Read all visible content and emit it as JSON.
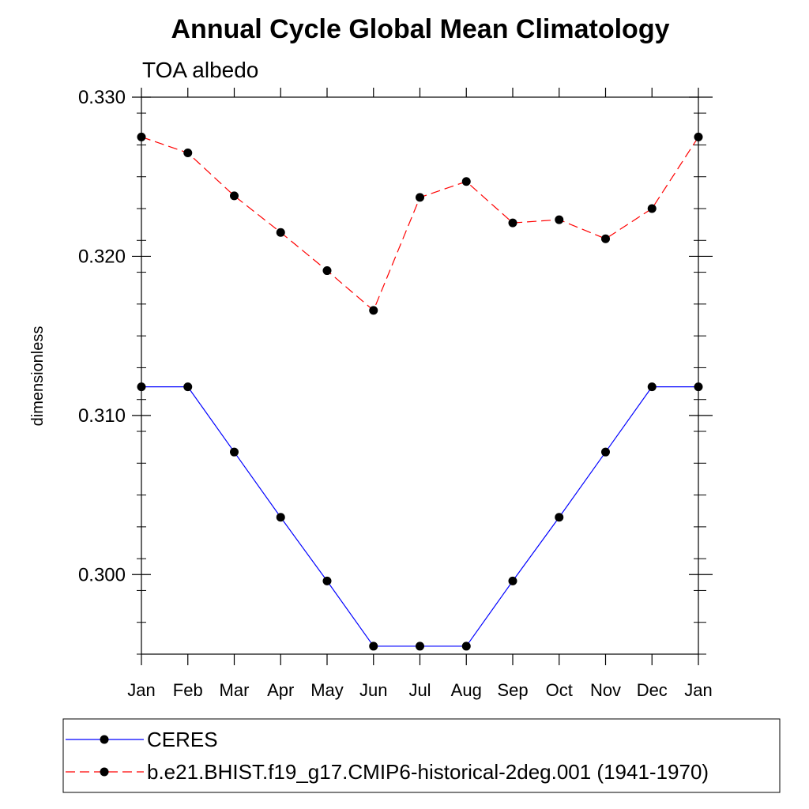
{
  "chart_data": {
    "type": "line",
    "title": "Annual Cycle Global Mean Climatology",
    "subtitle": "TOA albedo",
    "xlabel": "",
    "ylabel": "dimensionless",
    "categories": [
      "Jan",
      "Feb",
      "Mar",
      "Apr",
      "May",
      "Jun",
      "Jul",
      "Aug",
      "Sep",
      "Oct",
      "Nov",
      "Dec",
      "Jan"
    ],
    "ylim": [
      0.295,
      0.33
    ],
    "yticks": [
      0.3,
      0.31,
      0.32,
      0.33
    ],
    "ytick_labels": [
      "0.300",
      "0.310",
      "0.320",
      "0.330"
    ],
    "yminor_step": 0.002,
    "grid": false,
    "legend_position": "bottom",
    "series": [
      {
        "name": "CERES",
        "color": "#0000ff",
        "line_style": "solid",
        "marker": "filled-circle",
        "values": [
          0.3118,
          0.3118,
          0.3077,
          0.3036,
          0.2996,
          0.2955,
          0.2955,
          0.2955,
          0.2996,
          0.3036,
          0.3077,
          0.3118,
          0.3118
        ]
      },
      {
        "name": "b.e21.BHIST.f19_g17.CMIP6-historical-2deg.001 (1941-1970)",
        "color": "#ff0000",
        "line_style": "dashed",
        "marker": "filled-circle",
        "values": [
          0.3275,
          0.3265,
          0.3238,
          0.3215,
          0.3191,
          0.3166,
          0.3237,
          0.3247,
          0.3221,
          0.3223,
          0.3211,
          0.323,
          0.3275
        ]
      }
    ]
  }
}
